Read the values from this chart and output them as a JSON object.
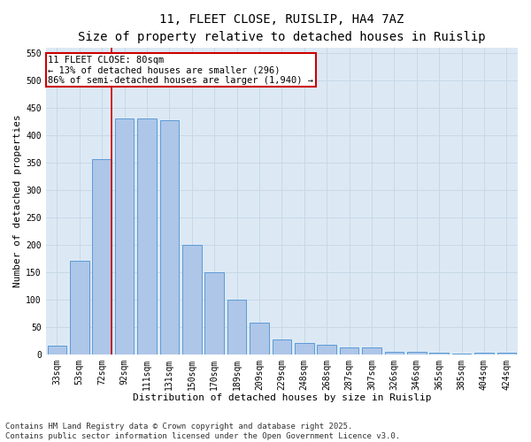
{
  "title_line1": "11, FLEET CLOSE, RUISLIP, HA4 7AZ",
  "title_line2": "Size of property relative to detached houses in Ruislip",
  "xlabel": "Distribution of detached houses by size in Ruislip",
  "ylabel": "Number of detached properties",
  "categories": [
    "33sqm",
    "53sqm",
    "72sqm",
    "92sqm",
    "111sqm",
    "131sqm",
    "150sqm",
    "170sqm",
    "189sqm",
    "209sqm",
    "229sqm",
    "248sqm",
    "268sqm",
    "287sqm",
    "307sqm",
    "326sqm",
    "346sqm",
    "365sqm",
    "385sqm",
    "404sqm",
    "424sqm"
  ],
  "values": [
    15,
    170,
    357,
    430,
    430,
    427,
    200,
    150,
    99,
    58,
    27,
    21,
    18,
    13,
    12,
    5,
    5,
    2,
    1,
    3,
    3
  ],
  "bar_color": "#aec6e8",
  "bar_edge_color": "#5b9bd5",
  "grid_color": "#c8d8e8",
  "background_color": "#dce9f5",
  "annotation_box_color": "#cc0000",
  "vline_color": "#cc0000",
  "vline_x_index": 2,
  "annotation_text_line1": "11 FLEET CLOSE: 80sqm",
  "annotation_text_line2": "← 13% of detached houses are smaller (296)",
  "annotation_text_line3": "86% of semi-detached houses are larger (1,940) →",
  "ylim": [
    0,
    560
  ],
  "yticks": [
    0,
    50,
    100,
    150,
    200,
    250,
    300,
    350,
    400,
    450,
    500,
    550
  ],
  "footnote_line1": "Contains HM Land Registry data © Crown copyright and database right 2025.",
  "footnote_line2": "Contains public sector information licensed under the Open Government Licence v3.0.",
  "title_fontsize": 10,
  "subtitle_fontsize": 9,
  "axis_label_fontsize": 8,
  "tick_fontsize": 7,
  "annotation_fontsize": 7.5,
  "footnote_fontsize": 6.5
}
